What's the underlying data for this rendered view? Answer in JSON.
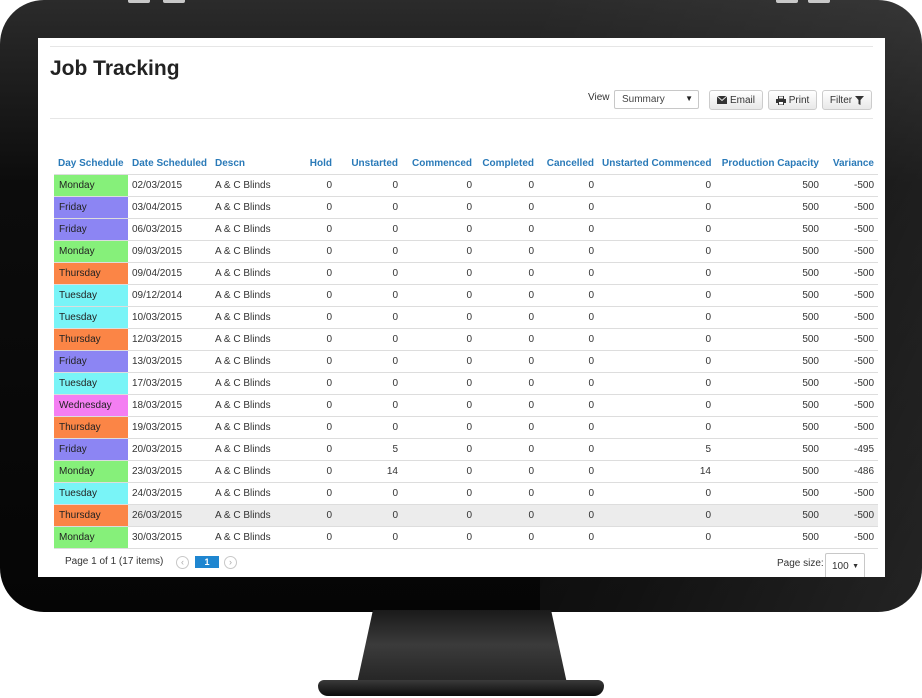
{
  "page": {
    "title": "Job Tracking",
    "view_label": "View",
    "view_value": "Summary",
    "email_label": "Email",
    "print_label": "Print",
    "filter_label": "Filter"
  },
  "table": {
    "columns": [
      "Day Schedule",
      "Date Scheduled",
      "Descn",
      "Hold",
      "Unstarted",
      "Commenced",
      "Completed",
      "Cancelled",
      "Unstarted Commenced",
      "Production Capacity",
      "Variance"
    ],
    "rows": [
      {
        "day": "Monday",
        "color": "#86f07a",
        "date": "02/03/2015",
        "descn": "A & C Blinds",
        "hold": "0",
        "unstarted": "0",
        "commenced": "0",
        "completed": "0",
        "cancelled": "0",
        "unstarted_commenced": "0",
        "capacity": "500",
        "variance": "-500"
      },
      {
        "day": "Friday",
        "color": "#8c85f3",
        "date": "03/04/2015",
        "descn": "A & C Blinds",
        "hold": "0",
        "unstarted": "0",
        "commenced": "0",
        "completed": "0",
        "cancelled": "0",
        "unstarted_commenced": "0",
        "capacity": "500",
        "variance": "-500"
      },
      {
        "day": "Friday",
        "color": "#8c85f3",
        "date": "06/03/2015",
        "descn": "A & C Blinds",
        "hold": "0",
        "unstarted": "0",
        "commenced": "0",
        "completed": "0",
        "cancelled": "0",
        "unstarted_commenced": "0",
        "capacity": "500",
        "variance": "-500"
      },
      {
        "day": "Monday",
        "color": "#86f07a",
        "date": "09/03/2015",
        "descn": "A & C Blinds",
        "hold": "0",
        "unstarted": "0",
        "commenced": "0",
        "completed": "0",
        "cancelled": "0",
        "unstarted_commenced": "0",
        "capacity": "500",
        "variance": "-500"
      },
      {
        "day": "Thursday",
        "color": "#fb8546",
        "date": "09/04/2015",
        "descn": "A & C Blinds",
        "hold": "0",
        "unstarted": "0",
        "commenced": "0",
        "completed": "0",
        "cancelled": "0",
        "unstarted_commenced": "0",
        "capacity": "500",
        "variance": "-500"
      },
      {
        "day": "Tuesday",
        "color": "#79f4f7",
        "date": "09/12/2014",
        "descn": "A & C Blinds",
        "hold": "0",
        "unstarted": "0",
        "commenced": "0",
        "completed": "0",
        "cancelled": "0",
        "unstarted_commenced": "0",
        "capacity": "500",
        "variance": "-500"
      },
      {
        "day": "Tuesday",
        "color": "#79f4f7",
        "date": "10/03/2015",
        "descn": "A & C Blinds",
        "hold": "0",
        "unstarted": "0",
        "commenced": "0",
        "completed": "0",
        "cancelled": "0",
        "unstarted_commenced": "0",
        "capacity": "500",
        "variance": "-500"
      },
      {
        "day": "Thursday",
        "color": "#fb8546",
        "date": "12/03/2015",
        "descn": "A & C Blinds",
        "hold": "0",
        "unstarted": "0",
        "commenced": "0",
        "completed": "0",
        "cancelled": "0",
        "unstarted_commenced": "0",
        "capacity": "500",
        "variance": "-500"
      },
      {
        "day": "Friday",
        "color": "#8c85f3",
        "date": "13/03/2015",
        "descn": "A & C Blinds",
        "hold": "0",
        "unstarted": "0",
        "commenced": "0",
        "completed": "0",
        "cancelled": "0",
        "unstarted_commenced": "0",
        "capacity": "500",
        "variance": "-500"
      },
      {
        "day": "Tuesday",
        "color": "#79f4f7",
        "date": "17/03/2015",
        "descn": "A & C Blinds",
        "hold": "0",
        "unstarted": "0",
        "commenced": "0",
        "completed": "0",
        "cancelled": "0",
        "unstarted_commenced": "0",
        "capacity": "500",
        "variance": "-500"
      },
      {
        "day": "Wednesday",
        "color": "#f47ef2",
        "date": "18/03/2015",
        "descn": "A & C Blinds",
        "hold": "0",
        "unstarted": "0",
        "commenced": "0",
        "completed": "0",
        "cancelled": "0",
        "unstarted_commenced": "0",
        "capacity": "500",
        "variance": "-500"
      },
      {
        "day": "Thursday",
        "color": "#fb8546",
        "date": "19/03/2015",
        "descn": "A & C Blinds",
        "hold": "0",
        "unstarted": "0",
        "commenced": "0",
        "completed": "0",
        "cancelled": "0",
        "unstarted_commenced": "0",
        "capacity": "500",
        "variance": "-500"
      },
      {
        "day": "Friday",
        "color": "#8c85f3",
        "date": "20/03/2015",
        "descn": "A & C Blinds",
        "hold": "0",
        "unstarted": "5",
        "commenced": "0",
        "completed": "0",
        "cancelled": "0",
        "unstarted_commenced": "5",
        "capacity": "500",
        "variance": "-495"
      },
      {
        "day": "Monday",
        "color": "#86f07a",
        "date": "23/03/2015",
        "descn": "A & C Blinds",
        "hold": "0",
        "unstarted": "14",
        "commenced": "0",
        "completed": "0",
        "cancelled": "0",
        "unstarted_commenced": "14",
        "capacity": "500",
        "variance": "-486"
      },
      {
        "day": "Tuesday",
        "color": "#79f4f7",
        "date": "24/03/2015",
        "descn": "A & C Blinds",
        "hold": "0",
        "unstarted": "0",
        "commenced": "0",
        "completed": "0",
        "cancelled": "0",
        "unstarted_commenced": "0",
        "capacity": "500",
        "variance": "-500"
      },
      {
        "day": "Thursday",
        "color": "#fb8546",
        "date": "26/03/2015",
        "descn": "A & C Blinds",
        "hold": "0",
        "unstarted": "0",
        "commenced": "0",
        "completed": "0",
        "cancelled": "0",
        "unstarted_commenced": "0",
        "capacity": "500",
        "variance": "-500",
        "highlighted": true
      },
      {
        "day": "Monday",
        "color": "#86f07a",
        "date": "30/03/2015",
        "descn": "A & C Blinds",
        "hold": "0",
        "unstarted": "0",
        "commenced": "0",
        "completed": "0",
        "cancelled": "0",
        "unstarted_commenced": "0",
        "capacity": "500",
        "variance": "-500"
      }
    ]
  },
  "footer": {
    "page_info": "Page 1 of 1 (17 items)",
    "current_page": "1",
    "page_size_label": "Page size:",
    "page_size_value": "100"
  },
  "icons": [
    "envelope-icon",
    "printer-icon",
    "filter-icon",
    "caret-down-icon",
    "chevron-left-icon",
    "chevron-right-icon"
  ]
}
